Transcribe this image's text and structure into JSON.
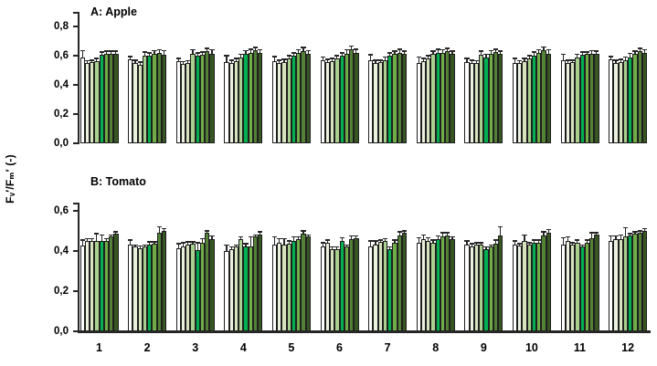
{
  "figure": {
    "ylabel": "Fᵥ′/Fₘ′ (-)",
    "background": "#ffffff",
    "text_color": "#000000",
    "bar_outline_color": "#1f1f1f",
    "error_bar_color": "#262626"
  },
  "chart_data": [
    {
      "type": "bar",
      "panel": "A",
      "title": "A: Apple",
      "xlabel": "",
      "ylabel": "Fᵥ′/Fₘ′ (-)",
      "grid": false,
      "legend": "none",
      "ylim": [
        0,
        0.9
      ],
      "yticks": [
        0,
        0.2,
        0.4,
        0.6,
        0.8
      ],
      "ytick_labels": [
        "0,0",
        "0,2",
        "0,4",
        "0,6",
        "0,8"
      ],
      "categories": [
        "1",
        "2",
        "3",
        "4",
        "5",
        "6",
        "7",
        "8",
        "9",
        "10",
        "11",
        "12"
      ],
      "bar_colors": [
        "#ffffff",
        "#eaf1dd",
        "#d6e4bd",
        "#a9d08e",
        "#00b050",
        "#70ad47",
        "#538135",
        "#375623"
      ],
      "groups": [
        {
          "category": "1",
          "values": [
            0.59,
            0.55,
            0.555,
            0.56,
            0.605,
            0.61,
            0.615,
            0.61
          ],
          "errors": [
            0.045,
            0.015,
            0.015,
            0.02,
            0.02,
            0.02,
            0.015,
            0.02
          ]
        },
        {
          "category": "2",
          "values": [
            0.575,
            0.55,
            0.535,
            0.6,
            0.6,
            0.615,
            0.62,
            0.605
          ],
          "errors": [
            0.02,
            0.02,
            0.02,
            0.025,
            0.02,
            0.02,
            0.02,
            0.03
          ]
        },
        {
          "category": "3",
          "values": [
            0.56,
            0.545,
            0.55,
            0.615,
            0.6,
            0.605,
            0.63,
            0.61
          ],
          "errors": [
            0.02,
            0.015,
            0.015,
            0.025,
            0.02,
            0.02,
            0.02,
            0.03
          ]
        },
        {
          "category": "4",
          "values": [
            0.555,
            0.55,
            0.565,
            0.59,
            0.615,
            0.62,
            0.635,
            0.62
          ],
          "errors": [
            0.045,
            0.02,
            0.015,
            0.02,
            0.02,
            0.025,
            0.02,
            0.02
          ]
        },
        {
          "category": "5",
          "values": [
            0.565,
            0.55,
            0.555,
            0.58,
            0.6,
            0.62,
            0.63,
            0.615
          ],
          "errors": [
            0.03,
            0.02,
            0.02,
            0.02,
            0.02,
            0.02,
            0.025,
            0.02
          ]
        },
        {
          "category": "6",
          "values": [
            0.57,
            0.555,
            0.565,
            0.58,
            0.6,
            0.615,
            0.645,
            0.62
          ],
          "errors": [
            0.02,
            0.02,
            0.015,
            0.02,
            0.02,
            0.025,
            0.02,
            0.025
          ]
        },
        {
          "category": "7",
          "values": [
            0.57,
            0.55,
            0.555,
            0.57,
            0.6,
            0.61,
            0.62,
            0.61
          ],
          "errors": [
            0.035,
            0.02,
            0.015,
            0.02,
            0.02,
            0.02,
            0.025,
            0.02
          ]
        },
        {
          "category": "8",
          "values": [
            0.55,
            0.56,
            0.58,
            0.61,
            0.62,
            0.62,
            0.63,
            0.61
          ],
          "errors": [
            0.04,
            0.02,
            0.02,
            0.02,
            0.025,
            0.02,
            0.02,
            0.02
          ]
        },
        {
          "category": "9",
          "values": [
            0.555,
            0.55,
            0.55,
            0.605,
            0.59,
            0.615,
            0.625,
            0.61
          ],
          "errors": [
            0.025,
            0.02,
            0.015,
            0.025,
            0.02,
            0.02,
            0.02,
            0.02
          ]
        },
        {
          "category": "10",
          "values": [
            0.55,
            0.55,
            0.565,
            0.58,
            0.6,
            0.62,
            0.64,
            0.615
          ],
          "errors": [
            0.03,
            0.015,
            0.015,
            0.02,
            0.025,
            0.02,
            0.02,
            0.025
          ]
        },
        {
          "category": "11",
          "values": [
            0.57,
            0.55,
            0.555,
            0.59,
            0.605,
            0.61,
            0.615,
            0.61
          ],
          "errors": [
            0.04,
            0.02,
            0.015,
            0.02,
            0.02,
            0.015,
            0.02,
            0.02
          ]
        },
        {
          "category": "12",
          "values": [
            0.575,
            0.55,
            0.555,
            0.57,
            0.59,
            0.61,
            0.63,
            0.62
          ],
          "errors": [
            0.02,
            0.02,
            0.02,
            0.02,
            0.025,
            0.02,
            0.02,
            0.02
          ]
        }
      ]
    },
    {
      "type": "bar",
      "panel": "B",
      "title": "B: Tomato",
      "xlabel": "",
      "ylabel": "Fᵥ′/Fₘ′ (-)",
      "grid": false,
      "legend": "none",
      "ylim": [
        0,
        0.64
      ],
      "yticks": [
        0,
        0.2,
        0.4,
        0.6
      ],
      "ytick_labels": [
        "0,0",
        "0,2",
        "0,4",
        "0,6"
      ],
      "categories": [
        "1",
        "2",
        "3",
        "4",
        "5",
        "6",
        "7",
        "8",
        "9",
        "10",
        "11",
        "12"
      ],
      "bar_colors": [
        "#ffffff",
        "#eaf1dd",
        "#d6e4bd",
        "#a9d08e",
        "#00b050",
        "#70ad47",
        "#538135",
        "#375623"
      ],
      "groups": [
        {
          "category": "1",
          "values": [
            0.425,
            0.45,
            0.45,
            0.45,
            0.45,
            0.45,
            0.47,
            0.485
          ],
          "errors": [
            0.03,
            0.01,
            0.01,
            0.035,
            0.03,
            0.01,
            0.01,
            0.01
          ]
        },
        {
          "category": "2",
          "values": [
            0.43,
            0.42,
            0.415,
            0.42,
            0.43,
            0.435,
            0.49,
            0.5
          ],
          "errors": [
            0.025,
            0.01,
            0.01,
            0.01,
            0.015,
            0.01,
            0.03,
            0.01
          ]
        },
        {
          "category": "3",
          "values": [
            0.415,
            0.42,
            0.43,
            0.435,
            0.405,
            0.44,
            0.49,
            0.46
          ],
          "errors": [
            0.02,
            0.02,
            0.015,
            0.01,
            0.035,
            0.02,
            0.01,
            0.015
          ]
        },
        {
          "category": "4",
          "values": [
            0.4,
            0.41,
            0.42,
            0.46,
            0.42,
            0.42,
            0.47,
            0.48
          ],
          "errors": [
            0.03,
            0.01,
            0.01,
            0.01,
            0.015,
            0.05,
            0.01,
            0.015
          ]
        },
        {
          "category": "5",
          "values": [
            0.43,
            0.44,
            0.43,
            0.435,
            0.45,
            0.46,
            0.485,
            0.47
          ],
          "errors": [
            0.04,
            0.02,
            0.03,
            0.015,
            0.02,
            0.01,
            0.015,
            0.01
          ]
        },
        {
          "category": "6",
          "values": [
            0.42,
            0.44,
            0.41,
            0.41,
            0.45,
            0.42,
            0.46,
            0.465
          ],
          "errors": [
            0.02,
            0.015,
            0.01,
            0.01,
            0.015,
            0.01,
            0.015,
            0.01
          ]
        },
        {
          "category": "7",
          "values": [
            0.42,
            0.43,
            0.445,
            0.45,
            0.41,
            0.44,
            0.475,
            0.49
          ],
          "errors": [
            0.03,
            0.02,
            0.01,
            0.01,
            0.01,
            0.015,
            0.02,
            0.01
          ]
        },
        {
          "category": "8",
          "values": [
            0.44,
            0.46,
            0.45,
            0.44,
            0.46,
            0.47,
            0.475,
            0.46
          ],
          "errors": [
            0.025,
            0.02,
            0.015,
            0.015,
            0.015,
            0.02,
            0.015,
            0.01
          ]
        },
        {
          "category": "9",
          "values": [
            0.43,
            0.42,
            0.43,
            0.43,
            0.41,
            0.42,
            0.435,
            0.475
          ],
          "errors": [
            0.02,
            0.015,
            0.01,
            0.01,
            0.01,
            0.01,
            0.02,
            0.045
          ]
        },
        {
          "category": "10",
          "values": [
            0.43,
            0.425,
            0.45,
            0.43,
            0.44,
            0.44,
            0.475,
            0.49
          ],
          "errors": [
            0.02,
            0.01,
            0.03,
            0.01,
            0.015,
            0.015,
            0.02,
            0.015
          ]
        },
        {
          "category": "11",
          "values": [
            0.43,
            0.45,
            0.43,
            0.44,
            0.42,
            0.44,
            0.465,
            0.48
          ],
          "errors": [
            0.035,
            0.02,
            0.01,
            0.015,
            0.01,
            0.015,
            0.025,
            0.01
          ]
        },
        {
          "category": "12",
          "values": [
            0.45,
            0.46,
            0.46,
            0.47,
            0.475,
            0.485,
            0.49,
            0.5
          ],
          "errors": [
            0.025,
            0.015,
            0.02,
            0.045,
            0.01,
            0.01,
            0.01,
            0.01
          ]
        }
      ]
    }
  ]
}
